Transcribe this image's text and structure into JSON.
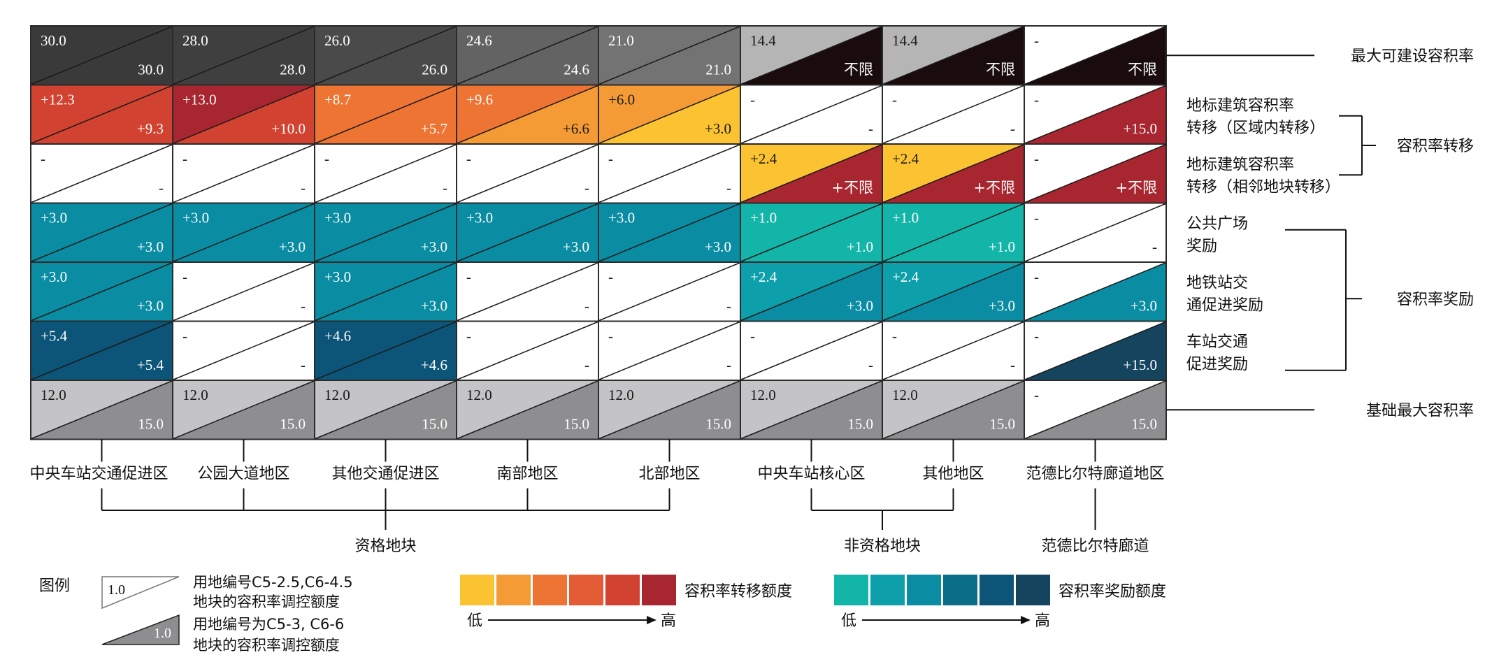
{
  "columns": [
    "中央车站交通促进区",
    "公园大道地区",
    "其他交通促进区",
    "南部地区",
    "北部地区",
    "中央车站核心区",
    "其他地区",
    "范德比尔特廊道地区"
  ],
  "column_groups": [
    {
      "label": "资格地块",
      "columns": [
        0,
        1,
        2,
        3,
        4
      ]
    },
    {
      "label": "非资格地块",
      "columns": [
        5,
        6
      ]
    },
    {
      "label": "范德比尔特廊道",
      "columns": [
        7
      ]
    }
  ],
  "row_labels": [
    {
      "lines": [
        "最大可建设容积率"
      ]
    },
    {
      "lines": [
        "地标建筑容积率",
        "转移（区域内转移）"
      ]
    },
    {
      "lines": [
        "地标建筑容积率",
        "转移（相邻地块转移）"
      ]
    },
    {
      "lines": [
        "公共广场",
        "奖励"
      ]
    },
    {
      "lines": [
        "地铁站交",
        "通促进奖励"
      ]
    },
    {
      "lines": [
        "车站交通",
        "促进奖励"
      ]
    },
    {
      "lines": [
        "基础最大容积率"
      ]
    }
  ],
  "row_groups": [
    {
      "label": "容积率转移",
      "rows": [
        1,
        2
      ]
    },
    {
      "label": "容积率奖励",
      "rows": [
        3,
        4,
        5
      ]
    }
  ],
  "colors": {
    "max_far_upper": [
      "#3a3a3a",
      "#3f3f3f",
      "#4a4a4a",
      "#636363",
      "#737373",
      "#b5b5b5",
      "#b5b5b5",
      "#ffffff"
    ],
    "max_far_lower": [
      "#3a3a3a",
      "#3f3f3f",
      "#4a4a4a",
      "#636363",
      "#737373",
      "#1a0c0c",
      "#1a0c0c",
      "#1a0c0c"
    ],
    "base_upper": "#c4c4c6",
    "base_lower": "#8e8e90",
    "transfer_scale": [
      "#fbc231",
      "#f59b35",
      "#ee7433",
      "#e35c35",
      "#d24230",
      "#a7262f"
    ],
    "bonus_scale": [
      "#13b5a9",
      "#0d9faa",
      "#0a8da3",
      "#0a6e88",
      "#0c5578",
      "#15445f"
    ],
    "empty": "#ffffff",
    "grid": "#2b2b2b"
  },
  "cells": [
    [
      {
        "a": "30.0",
        "b": "30.0",
        "ac": "max0",
        "bc": "max0"
      },
      {
        "a": "28.0",
        "b": "28.0",
        "ac": "max1",
        "bc": "max1"
      },
      {
        "a": "26.0",
        "b": "26.0",
        "ac": "max2",
        "bc": "max2"
      },
      {
        "a": "24.6",
        "b": "24.6",
        "ac": "max3",
        "bc": "max3"
      },
      {
        "a": "21.0",
        "b": "21.0",
        "ac": "max4",
        "bc": "max4"
      },
      {
        "a": "14.4",
        "b": "不限",
        "ac": "max5",
        "bc": "maxL5"
      },
      {
        "a": "14.4",
        "b": "不限",
        "ac": "max6",
        "bc": "maxL6"
      },
      {
        "a": "-",
        "b": "不限",
        "ac": "max7",
        "bc": "maxL7"
      }
    ],
    [
      {
        "a": "+12.3",
        "b": "+9.3",
        "ac": "t4",
        "bc": "t4"
      },
      {
        "a": "+13.0",
        "b": "+10.0",
        "ac": "t5",
        "bc": "t4"
      },
      {
        "a": "+8.7",
        "b": "+5.7",
        "ac": "t2",
        "bc": "t2"
      },
      {
        "a": "+9.6",
        "b": "+6.6",
        "ac": "t2",
        "bc": "t1"
      },
      {
        "a": "+6.0",
        "b": "+3.0",
        "ac": "t1",
        "bc": "t0"
      },
      {
        "a": "-",
        "b": "-",
        "ac": "e",
        "bc": "e"
      },
      {
        "a": "-",
        "b": "-",
        "ac": "e",
        "bc": "e"
      },
      {
        "a": "-",
        "b": "+15.0",
        "ac": "e",
        "bc": "t5"
      }
    ],
    [
      {
        "a": "-",
        "b": "-",
        "ac": "e",
        "bc": "e"
      },
      {
        "a": "-",
        "b": "-",
        "ac": "e",
        "bc": "e"
      },
      {
        "a": "-",
        "b": "-",
        "ac": "e",
        "bc": "e"
      },
      {
        "a": "-",
        "b": "-",
        "ac": "e",
        "bc": "e"
      },
      {
        "a": "-",
        "b": "-",
        "ac": "e",
        "bc": "e"
      },
      {
        "a": "+2.4",
        "b": "+不限",
        "ac": "t0",
        "bc": "t5"
      },
      {
        "a": "+2.4",
        "b": "+不限",
        "ac": "t0",
        "bc": "t5"
      },
      {
        "a": "-",
        "b": "+不限",
        "ac": "e",
        "bc": "t5"
      }
    ],
    [
      {
        "a": "+3.0",
        "b": "+3.0",
        "ac": "b2",
        "bc": "b2"
      },
      {
        "a": "+3.0",
        "b": "+3.0",
        "ac": "b2",
        "bc": "b2"
      },
      {
        "a": "+3.0",
        "b": "+3.0",
        "ac": "b2",
        "bc": "b2"
      },
      {
        "a": "+3.0",
        "b": "+3.0",
        "ac": "b2",
        "bc": "b2"
      },
      {
        "a": "+3.0",
        "b": "+3.0",
        "ac": "b2",
        "bc": "b2"
      },
      {
        "a": "+1.0",
        "b": "+1.0",
        "ac": "b0",
        "bc": "b0"
      },
      {
        "a": "+1.0",
        "b": "+1.0",
        "ac": "b0",
        "bc": "b0"
      },
      {
        "a": "-",
        "b": "-",
        "ac": "e",
        "bc": "e"
      }
    ],
    [
      {
        "a": "+3.0",
        "b": "+3.0",
        "ac": "b2",
        "bc": "b2"
      },
      {
        "a": "-",
        "b": "-",
        "ac": "e",
        "bc": "e"
      },
      {
        "a": "+3.0",
        "b": "+3.0",
        "ac": "b2",
        "bc": "b2"
      },
      {
        "a": "-",
        "b": "-",
        "ac": "e",
        "bc": "e"
      },
      {
        "a": "-",
        "b": "-",
        "ac": "e",
        "bc": "e"
      },
      {
        "a": "+2.4",
        "b": "+3.0",
        "ac": "b1",
        "bc": "b2"
      },
      {
        "a": "+2.4",
        "b": "+3.0",
        "ac": "b1",
        "bc": "b2"
      },
      {
        "a": "-",
        "b": "+3.0",
        "ac": "e",
        "bc": "b2"
      }
    ],
    [
      {
        "a": "+5.4",
        "b": "+5.4",
        "ac": "b4",
        "bc": "b4"
      },
      {
        "a": "-",
        "b": "-",
        "ac": "e",
        "bc": "e"
      },
      {
        "a": "+4.6",
        "b": "+4.6",
        "ac": "b4",
        "bc": "b4"
      },
      {
        "a": "-",
        "b": "-",
        "ac": "e",
        "bc": "e"
      },
      {
        "a": "-",
        "b": "-",
        "ac": "e",
        "bc": "e"
      },
      {
        "a": "-",
        "b": "-",
        "ac": "e",
        "bc": "e"
      },
      {
        "a": "-",
        "b": "-",
        "ac": "e",
        "bc": "e"
      },
      {
        "a": "-",
        "b": "+15.0",
        "ac": "e",
        "bc": "b5"
      }
    ],
    [
      {
        "a": "12.0",
        "b": "15.0",
        "ac": "bu",
        "bc": "bl"
      },
      {
        "a": "12.0",
        "b": "15.0",
        "ac": "bu",
        "bc": "bl"
      },
      {
        "a": "12.0",
        "b": "15.0",
        "ac": "bu",
        "bc": "bl"
      },
      {
        "a": "12.0",
        "b": "15.0",
        "ac": "bu",
        "bc": "bl"
      },
      {
        "a": "12.0",
        "b": "15.0",
        "ac": "bu",
        "bc": "bl"
      },
      {
        "a": "12.0",
        "b": "15.0",
        "ac": "bu",
        "bc": "bl"
      },
      {
        "a": "12.0",
        "b": "15.0",
        "ac": "bu",
        "bc": "bl"
      },
      {
        "a": "-",
        "b": "15.0",
        "ac": "e",
        "bc": "bl"
      }
    ]
  ],
  "legend": {
    "title": "图例",
    "items": [
      {
        "value": "1.0",
        "lines": [
          "用地编号C5-2.5,C6-4.5",
          "地块的容积率调控额度"
        ]
      },
      {
        "value": "1.0",
        "lines": [
          "用地编号为C5-3, C6-6",
          "地块的容积率调控额度"
        ]
      }
    ],
    "transfer_label": "容积率转移额度",
    "bonus_label": "容积率奖励额度",
    "low": "低",
    "high": "高"
  }
}
